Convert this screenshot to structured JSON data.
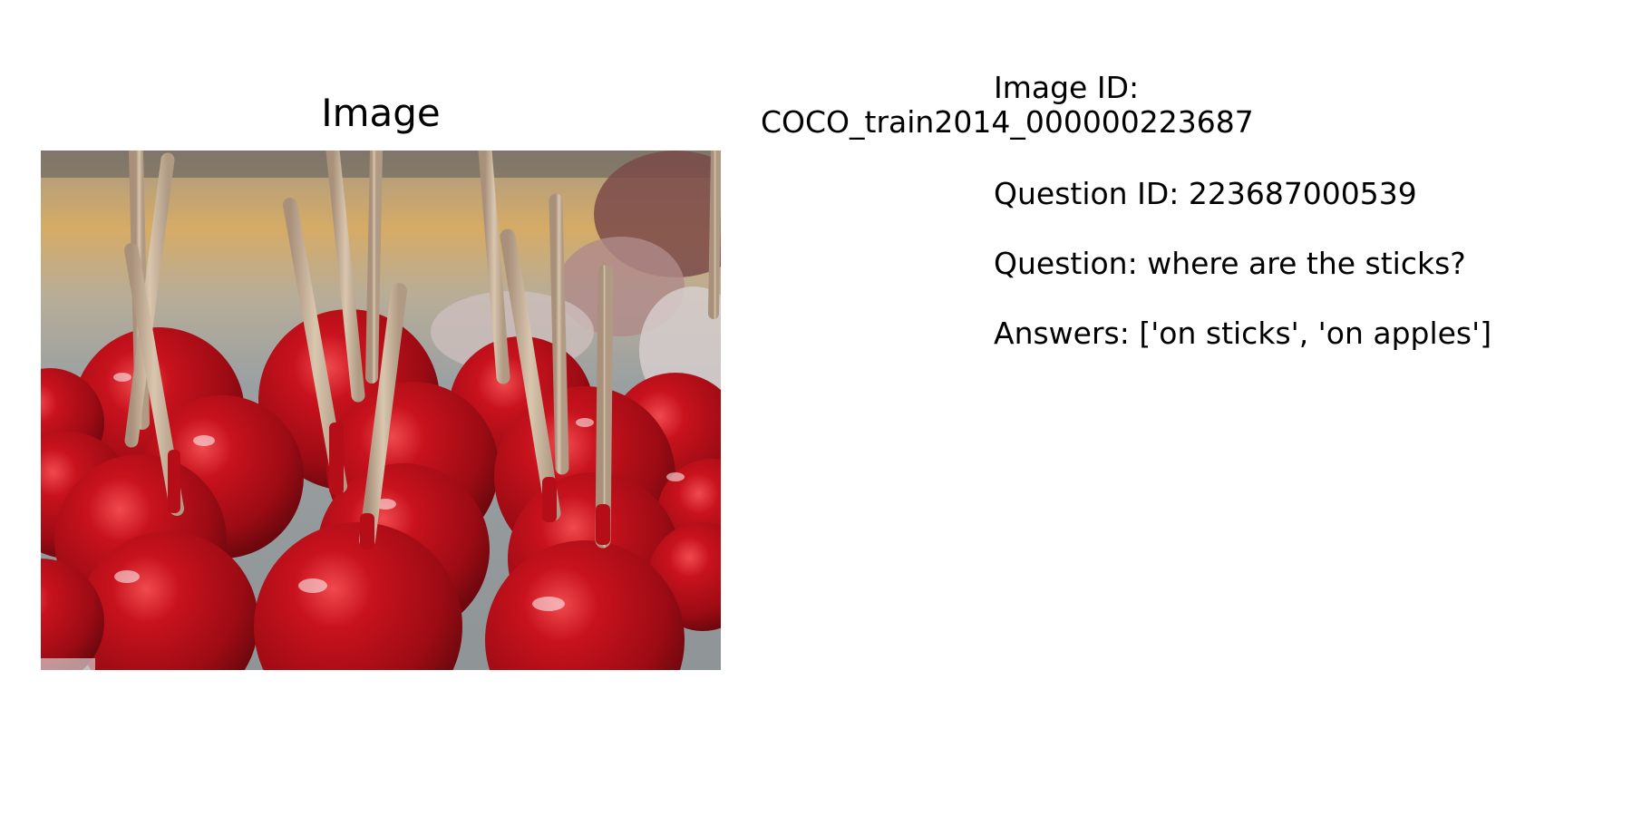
{
  "panel": {
    "title": "Image"
  },
  "info": {
    "image_id_label": "Image ID:",
    "image_id_value": "COCO_train2014_000000223687",
    "question_id": "Question ID: 223687000539",
    "question": "Question: where are the sticks?",
    "answers": "Answers: ['on sticks', 'on apples']"
  },
  "colors": {
    "apple_red": "#b30f1a",
    "apple_dark": "#6e0a10",
    "stick": "#c9b39a",
    "background_gray": "#9aa0a2",
    "background_yellow": "#d6ab66"
  }
}
